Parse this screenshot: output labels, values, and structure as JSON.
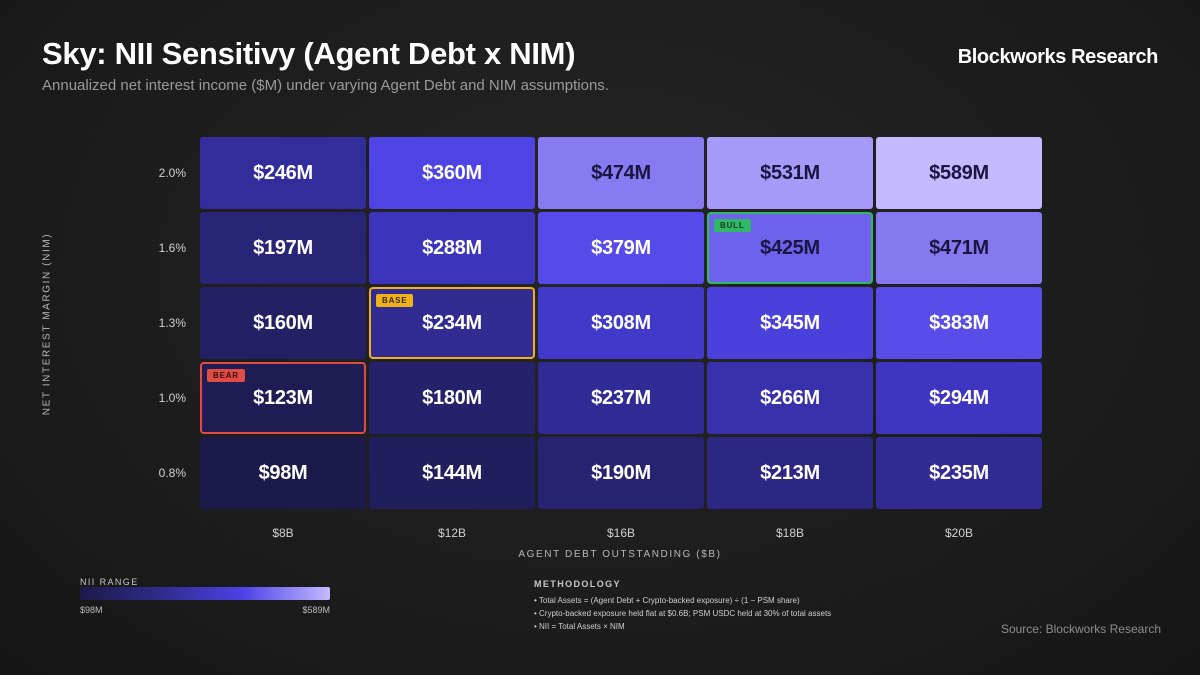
{
  "header": {
    "title": "Sky: NII Sensitivy (Agent Debt x NIM)",
    "subtitle": "Annualized net interest income ($M) under varying Agent Debt and NIM assumptions.",
    "brand": "Blockworks Research"
  },
  "chart_data": {
    "type": "heatmap",
    "title": "Sky: NII Sensitivy (Agent Debt x NIM)",
    "subtitle": "Annualized net interest income ($M) under varying Agent Debt and NIM assumptions.",
    "xlabel": "AGENT DEBT OUTSTANDING ($B)",
    "ylabel": "NET INTEREST MARGIN (NIM)",
    "x_categories": [
      "$8B",
      "$12B",
      "$16B",
      "$18B",
      "$20B"
    ],
    "y_categories": [
      "2.0%",
      "1.6%",
      "1.3%",
      "1.0%",
      "0.8%"
    ],
    "values": [
      [
        246,
        360,
        474,
        531,
        589
      ],
      [
        197,
        288,
        379,
        425,
        471
      ],
      [
        160,
        234,
        308,
        345,
        383
      ],
      [
        123,
        180,
        237,
        266,
        294
      ],
      [
        98,
        144,
        190,
        213,
        235
      ]
    ],
    "labels": [
      [
        "$246M",
        "$360M",
        "$474M",
        "$531M",
        "$589M"
      ],
      [
        "$197M",
        "$288M",
        "$379M",
        "$425M",
        "$471M"
      ],
      [
        "$160M",
        "$234M",
        "$308M",
        "$345M",
        "$383M"
      ],
      [
        "$123M",
        "$180M",
        "$237M",
        "$266M",
        "$294M"
      ],
      [
        "$98M",
        "$144M",
        "$190M",
        "$213M",
        "$235M"
      ]
    ],
    "scenarios": [
      {
        "label": "BULL",
        "row": 1,
        "col": 3,
        "color": "#2fb865",
        "text_color": "#0f3d1f"
      },
      {
        "label": "BASE",
        "row": 2,
        "col": 1,
        "color": "#f0b21a",
        "text_color": "#3a2a00"
      },
      {
        "label": "BEAR",
        "row": 3,
        "col": 0,
        "color": "#e04b43",
        "text_color": "#3a0d0a"
      }
    ],
    "legend": {
      "title": "NII RANGE",
      "min_label": "$98M",
      "max_label": "$589M",
      "min": 98,
      "max": 589
    },
    "colors": {
      "low": "#1c1a4a",
      "mid": "#4b42e6",
      "high": "#c5b9ff"
    }
  },
  "methodology": {
    "title": "METHODOLOGY",
    "lines": [
      "• Total Assets = (Agent Debt + Crypto-backed exposure) ÷ (1 − PSM share)",
      "• Crypto-backed exposure held flat at $0.6B; PSM USDC held at 30% of total assets",
      "• NII = Total Assets × NIM"
    ]
  },
  "source": "Source: Blockworks Research"
}
